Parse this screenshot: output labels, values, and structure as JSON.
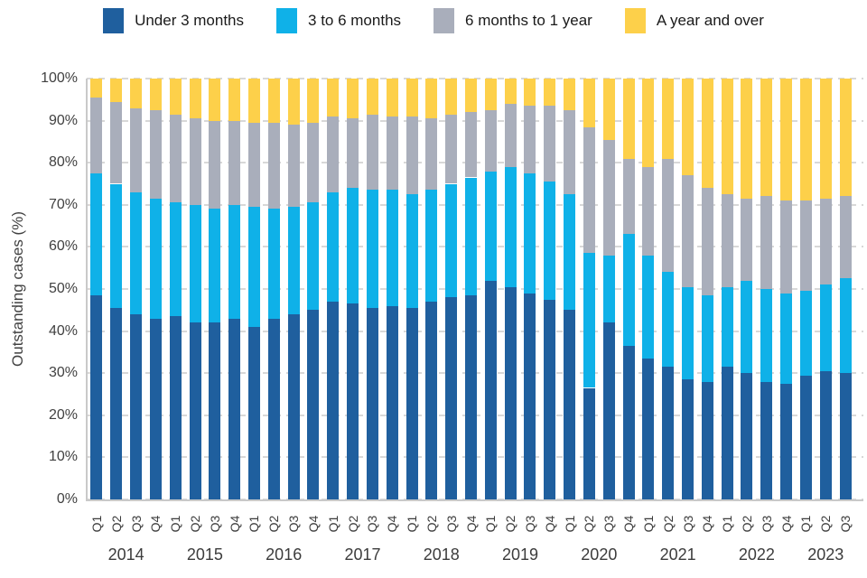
{
  "chart_data": {
    "type": "bar",
    "stacked": true,
    "percent_stacked": true,
    "title": "",
    "ylabel": "Outstanding cases (%)",
    "ylim": [
      0,
      100
    ],
    "yticks": [
      0,
      10,
      20,
      30,
      40,
      50,
      60,
      70,
      80,
      90,
      100
    ],
    "ytick_labels": [
      "0%",
      "10%",
      "20%",
      "30%",
      "40%",
      "50%",
      "60%",
      "70%",
      "80%",
      "90%",
      "100%"
    ],
    "grid": "dashed-horizontal",
    "legend_position": "top",
    "x_groups": [
      {
        "label": "2014",
        "quarters": [
          "Q1",
          "Q2",
          "Q3",
          "Q4"
        ]
      },
      {
        "label": "2015",
        "quarters": [
          "Q1",
          "Q2",
          "Q3",
          "Q4"
        ]
      },
      {
        "label": "2016",
        "quarters": [
          "Q1",
          "Q2",
          "Q3",
          "Q4"
        ]
      },
      {
        "label": "2017",
        "quarters": [
          "Q1",
          "Q2",
          "Q3",
          "Q4"
        ]
      },
      {
        "label": "2018",
        "quarters": [
          "Q1",
          "Q2",
          "Q3",
          "Q4"
        ]
      },
      {
        "label": "2019",
        "quarters": [
          "Q1",
          "Q2",
          "Q3",
          "Q4"
        ]
      },
      {
        "label": "2020",
        "quarters": [
          "Q1",
          "Q2",
          "Q3",
          "Q4"
        ]
      },
      {
        "label": "2021",
        "quarters": [
          "Q1",
          "Q2",
          "Q3",
          "Q4"
        ]
      },
      {
        "label": "2022",
        "quarters": [
          "Q1",
          "Q2",
          "Q3",
          "Q4"
        ]
      },
      {
        "label": "2023",
        "quarters": [
          "Q1",
          "Q2",
          "Q3"
        ]
      }
    ],
    "series": [
      {
        "name": "Under 3 months",
        "color": "#1f5f9e",
        "values": [
          48.5,
          45.5,
          44,
          43,
          43.5,
          42,
          42,
          43,
          41,
          43,
          44,
          45,
          47,
          46.5,
          45.5,
          46,
          45.5,
          47,
          48,
          48.5,
          52,
          50.5,
          49,
          47.5,
          45,
          26.5,
          42,
          36.5,
          33.5,
          31.5,
          28.5,
          28,
          31.5,
          30,
          28,
          27.5,
          29.5,
          30.5,
          30
        ]
      },
      {
        "name": "3 to 6 months",
        "color": "#0fb1e8",
        "values": [
          29,
          29.5,
          29,
          28.5,
          27,
          28,
          27,
          27,
          28.5,
          26,
          25.5,
          25.5,
          26,
          27.5,
          28,
          27.5,
          27,
          26.5,
          27,
          28,
          26,
          28.5,
          28.5,
          28,
          27.5,
          32,
          16,
          26.5,
          24.5,
          22.5,
          22,
          20.5,
          19,
          22,
          22,
          21.5,
          20,
          20.5,
          22.5
        ]
      },
      {
        "name": "6 months to 1 year",
        "color": "#a9aebb",
        "values": [
          18,
          19.5,
          20,
          21,
          21,
          20.5,
          21,
          20,
          20,
          20.5,
          19.5,
          19,
          18,
          16.5,
          18,
          17.5,
          18.5,
          17,
          16.5,
          15.5,
          14.5,
          15,
          16,
          18,
          20,
          30,
          27.5,
          18,
          21,
          27,
          26.5,
          25.5,
          22,
          19.5,
          22,
          22,
          21.5,
          20.5,
          19.5
        ]
      },
      {
        "name": "A year and over",
        "color": "#fdd04a",
        "values": [
          4.5,
          5.5,
          7,
          7.5,
          8.5,
          9.5,
          10,
          10,
          10.5,
          10.5,
          11,
          10.5,
          9,
          9.5,
          8.5,
          9,
          9,
          9.5,
          8.5,
          8,
          7.5,
          6,
          6.5,
          6.5,
          7.5,
          11.5,
          14.5,
          19,
          21,
          19,
          23,
          26,
          27.5,
          28.5,
          28,
          29,
          29,
          28.5,
          28
        ]
      }
    ],
    "colors": {
      "gridline": "#d8d8d8",
      "axis": "#c9c9c9",
      "text": "#3c3c3c"
    }
  }
}
